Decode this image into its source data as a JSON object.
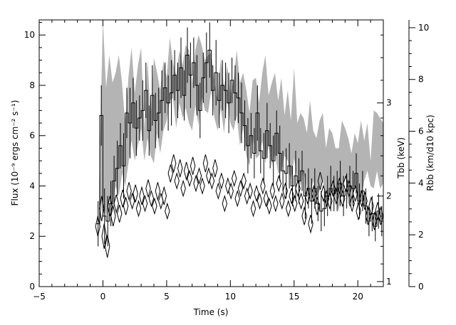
{
  "chart_data": {
    "type": "line",
    "title": "",
    "xlabel": "Time (s)",
    "ylabel": "Flux (10⁻⁹ ergs cm⁻² s⁻¹)",
    "xlim": [
      -5,
      22
    ],
    "ylim": [
      0,
      10.6
    ],
    "x_ticks": [
      -5,
      0,
      5,
      10,
      15,
      20
    ],
    "y_ticks": [
      0,
      2,
      4,
      6,
      8,
      10
    ],
    "right_axis_T": {
      "label": "Tbb (keV)",
      "ticks": [
        {
          "value": 1,
          "flux_pos": 0.2
        },
        {
          "value": 2,
          "flux_pos": 3.6
        },
        {
          "value": 3,
          "flux_pos": 7.3
        }
      ]
    },
    "right_axis_R": {
      "label": "Rbb (km/d10 kpc)",
      "ticks": [
        0,
        2,
        4,
        6,
        8,
        10
      ],
      "range": [
        0,
        10.3
      ]
    },
    "series": [
      {
        "style": "band",
        "color": "#b4b4b4",
        "x": [
          -0.3,
          0,
          0.25,
          0.5,
          0.75,
          1.0,
          1.25,
          1.5,
          1.75,
          2.0,
          2.25,
          2.5,
          2.75,
          3.0,
          3.25,
          3.5,
          3.75,
          4.0,
          4.25,
          4.5,
          4.75,
          5.0,
          5.25,
          5.5,
          5.75,
          6.0,
          6.25,
          6.5,
          6.75,
          7.0,
          7.25,
          7.5,
          7.75,
          8.0,
          8.25,
          8.5,
          8.75,
          9.0,
          9.25,
          9.5,
          9.75,
          10.0,
          10.25,
          10.5,
          10.75,
          11.0,
          11.25,
          11.5,
          11.75,
          12.0,
          12.25,
          12.5,
          12.75,
          13.0,
          13.25,
          13.5,
          13.75,
          14.0,
          14.25,
          14.5,
          14.75,
          15.0,
          15.25,
          15.5,
          15.75,
          16.0,
          16.25,
          16.5,
          16.75,
          17.0,
          17.25,
          17.5,
          17.75,
          18.0,
          18.25,
          18.5,
          18.75,
          19.0,
          19.25,
          19.5,
          19.75,
          20.0,
          20.25,
          20.5,
          20.75,
          21.0,
          21.25,
          21.5,
          21.75,
          22.0
        ],
        "lower": [
          2.3,
          3.5,
          2.7,
          3.4,
          3.1,
          4.0,
          3.6,
          4.5,
          4.0,
          4.9,
          5.8,
          5.0,
          5.6,
          6.3,
          5.0,
          5.9,
          5.2,
          4.9,
          6.1,
          5.3,
          6.2,
          6.6,
          7.4,
          7.5,
          6.3,
          7.3,
          6.7,
          7.1,
          6.5,
          6.2,
          7.2,
          6.4,
          7.6,
          7.0,
          6.9,
          7.8,
          6.7,
          6.2,
          7.1,
          6.1,
          7.4,
          6.5,
          6.2,
          6.8,
          5.6,
          6.3,
          5.2,
          4.8,
          6.0,
          5.1,
          5.2,
          5.8,
          4.9,
          5.6,
          4.8,
          5.3,
          4.5,
          4.6,
          5.2,
          5.0,
          4.2,
          5.1,
          4.3,
          4.0,
          4.6,
          3.8,
          3.7,
          4.2,
          3.6,
          3.8,
          4.3,
          3.2,
          3.6,
          3.9,
          3.5,
          3.0,
          3.9,
          4.5,
          3.3,
          3.1,
          4.2,
          3.0,
          3.5,
          4.2,
          4.6,
          4.0,
          3.9,
          4.6,
          3.9,
          4.1
        ],
        "upper": [
          4.1,
          10.6,
          7.9,
          9.2,
          8.1,
          8.5,
          9.2,
          8.1,
          6.4,
          8.3,
          9.5,
          7.7,
          8.8,
          9.5,
          6.3,
          9.0,
          6.7,
          9.1,
          8.5,
          7.8,
          9.0,
          8.3,
          9.9,
          8.9,
          8.4,
          9.4,
          8.8,
          9.6,
          9.4,
          8.1,
          9.4,
          10.0,
          9.6,
          9.0,
          9.2,
          9.3,
          8.1,
          7.4,
          9.1,
          7.9,
          8.8,
          7.6,
          8.2,
          9.4,
          8.1,
          8.5,
          7.8,
          6.9,
          8.2,
          8.3,
          7.3,
          8.5,
          9.2,
          7.6,
          8.1,
          8.5,
          7.4,
          8.3,
          6.8,
          7.8,
          6.6,
          8.7,
          6.5,
          6.9,
          6.7,
          6.1,
          7.4,
          6.2,
          5.9,
          6.6,
          6.9,
          5.5,
          6.3,
          6.1,
          5.5,
          5.5,
          6.6,
          6.3,
          5.9,
          5.3,
          6.1,
          5.7,
          6.6,
          5.8,
          6.5,
          5.0,
          7.0,
          6.9,
          6.7,
          6.5
        ]
      },
      {
        "style": "step",
        "color": "#000000",
        "x": [
          -0.5,
          -0.25,
          0,
          0.25,
          0.5,
          0.75,
          1.0,
          1.25,
          1.5,
          1.75,
          2.0,
          2.25,
          2.5,
          2.75,
          3.0,
          3.25,
          3.5,
          3.75,
          4.0,
          4.25,
          4.5,
          4.75,
          5.0,
          5.25,
          5.5,
          5.75,
          6.0,
          6.25,
          6.5,
          6.75,
          7.0,
          7.25,
          7.5,
          7.75,
          8.0,
          8.25,
          8.5,
          8.75,
          9.0,
          9.25,
          9.5,
          9.75,
          10.0,
          10.25,
          10.5,
          10.75,
          11.0,
          11.25,
          11.5,
          11.75,
          12.0,
          12.25,
          12.5,
          12.75,
          13.0,
          13.25,
          13.5,
          13.75,
          14.0,
          14.25,
          14.5,
          14.75,
          15.0,
          15.25,
          15.5,
          15.75,
          16.0,
          16.25,
          16.5,
          16.75,
          17.0,
          17.25,
          17.5,
          17.75,
          18.0,
          18.25,
          18.5,
          18.75,
          19.0,
          19.25,
          19.5,
          19.75,
          20.0,
          20.25,
          20.5,
          20.75,
          21.0,
          21.25,
          21.5,
          21.75
        ],
        "y": [
          2.5,
          6.8,
          2.8,
          2.6,
          3.3,
          4.2,
          4.7,
          5.6,
          4.8,
          6.9,
          6.5,
          7.3,
          6.3,
          6.7,
          7.0,
          7.8,
          6.2,
          7.6,
          6.6,
          6.9,
          7.4,
          7.9,
          7.3,
          7.7,
          8.4,
          7.8,
          8.7,
          7.6,
          9.2,
          8.4,
          8.9,
          8.0,
          7.0,
          8.3,
          8.9,
          9.4,
          7.8,
          8.5,
          7.4,
          8.0,
          7.8,
          7.3,
          8.2,
          7.7,
          7.5,
          6.9,
          6.4,
          5.6,
          6.0,
          5.3,
          6.9,
          5.4,
          5.1,
          6.2,
          5.6,
          5.0,
          6.1,
          5.3,
          4.6,
          4.5,
          4.8,
          4.0,
          4.4,
          4.2,
          4.6,
          3.6,
          3.9,
          3.4,
          3.9,
          3.3,
          3.0,
          3.1,
          3.6,
          3.9,
          3.7,
          3.8,
          4.1,
          3.6,
          3.8,
          4.0,
          3.9,
          4.5,
          3.4,
          3.8,
          3.2,
          2.6,
          2.9,
          2.4,
          3.0,
          2.6
        ],
        "yerr": [
          0.9,
          1.2,
          1.1,
          1.0,
          0.9,
          1.0,
          1.1,
          0.9,
          1.3,
          1.0,
          1.4,
          1.0,
          1.1,
          0.9,
          1.2,
          1.1,
          1.0,
          1.2,
          1.1,
          1.0,
          1.2,
          1.0,
          1.1,
          1.3,
          1.0,
          1.1,
          1.2,
          1.0,
          1.1,
          1.3,
          1.0,
          1.2,
          1.1,
          1.0,
          1.2,
          1.1,
          1.0,
          1.3,
          1.1,
          1.0,
          1.1,
          1.2,
          0.9,
          1.1,
          1.0,
          1.2,
          1.0,
          1.1,
          0.9,
          1.0,
          1.1,
          0.9,
          1.0,
          1.1,
          0.9,
          1.0,
          0.9,
          1.1,
          0.8,
          1.0,
          0.9,
          0.8,
          1.0,
          0.9,
          0.8,
          0.9,
          0.8,
          0.9,
          0.8,
          0.7,
          0.8,
          0.7,
          0.8,
          0.9,
          0.7,
          0.8,
          0.9,
          0.8,
          0.7,
          0.8,
          0.7,
          0.8,
          0.7,
          0.8,
          0.7,
          0.6,
          0.7,
          0.6,
          0.7,
          0.6
        ]
      },
      {
        "style": "diamond-error",
        "color": "#000000",
        "x": [
          -0.4,
          -0.1,
          0.1,
          0.35,
          0.55,
          0.8,
          1.05,
          1.3,
          1.55,
          1.8,
          2.05,
          2.3,
          2.55,
          2.8,
          3.05,
          3.3,
          3.55,
          3.8,
          4.05,
          4.3,
          4.55,
          4.8,
          5.05,
          5.3,
          5.55,
          5.8,
          6.05,
          6.3,
          6.55,
          6.8,
          7.05,
          7.3,
          7.55,
          7.8,
          8.05,
          8.3,
          8.55,
          8.8,
          9.05,
          9.3,
          9.55,
          9.8,
          10.05,
          10.3,
          10.55,
          10.8,
          11.05,
          11.3,
          11.55,
          11.8,
          12.05,
          12.3,
          12.55,
          12.8,
          13.05,
          13.3,
          13.55,
          13.8,
          14.05,
          14.3,
          14.55,
          14.8,
          15.05,
          15.3,
          15.55,
          15.8,
          16.05,
          16.3,
          16.55,
          16.8,
          17.05,
          17.3,
          17.55,
          17.8,
          18.05,
          18.3,
          18.55,
          18.8,
          19.05,
          19.3,
          19.55,
          19.8,
          20.05,
          20.3,
          20.55,
          20.8,
          21.05,
          21.3,
          21.55,
          21.8
        ],
        "y": [
          2.4,
          3.1,
          2.0,
          1.6,
          3.2,
          2.8,
          3.3,
          2.9,
          3.5,
          3.2,
          3.8,
          3.4,
          3.7,
          3.1,
          3.6,
          3.3,
          3.9,
          3.5,
          3.2,
          3.8,
          3.4,
          3.6,
          3.0,
          4.5,
          4.9,
          4.2,
          4.7,
          3.9,
          4.6,
          4.3,
          4.8,
          4.1,
          4.4,
          4.0,
          4.9,
          4.4,
          4.2,
          4.7,
          3.8,
          4.2,
          3.3,
          4.0,
          3.8,
          4.3,
          3.5,
          3.9,
          4.2,
          3.6,
          3.8,
          3.1,
          3.7,
          3.4,
          4.0,
          3.5,
          3.2,
          3.8,
          3.3,
          4.1,
          3.4,
          3.8,
          3.1,
          3.6,
          3.3,
          3.9,
          3.4,
          2.8,
          3.6,
          2.5,
          3.7,
          3.2,
          4.2,
          3.7,
          3.5,
          3.4,
          3.9,
          3.6,
          4.0,
          3.5,
          4.1,
          3.9,
          3.3,
          3.7,
          3.0,
          3.5,
          3.4,
          2.8,
          3.2,
          2.6,
          3.0,
          2.8
        ],
        "yerr": [
          0.4,
          0.5,
          0.5,
          0.45,
          0.4,
          0.4,
          0.35,
          0.35,
          0.35,
          0.35,
          0.35,
          0.3,
          0.35,
          0.3,
          0.35,
          0.3,
          0.35,
          0.3,
          0.3,
          0.35,
          0.3,
          0.35,
          0.3,
          0.35,
          0.35,
          0.3,
          0.35,
          0.3,
          0.35,
          0.3,
          0.35,
          0.3,
          0.3,
          0.3,
          0.35,
          0.3,
          0.3,
          0.35,
          0.3,
          0.3,
          0.3,
          0.3,
          0.3,
          0.3,
          0.3,
          0.3,
          0.3,
          0.3,
          0.3,
          0.3,
          0.3,
          0.3,
          0.3,
          0.3,
          0.3,
          0.3,
          0.3,
          0.3,
          0.3,
          0.3,
          0.3,
          0.3,
          0.3,
          0.3,
          0.3,
          0.35,
          0.3,
          0.35,
          0.3,
          0.35,
          0.35,
          0.3,
          0.3,
          0.3,
          0.3,
          0.3,
          0.3,
          0.3,
          0.3,
          0.3,
          0.3,
          0.3,
          0.35,
          0.3,
          0.35,
          0.35,
          0.35,
          0.35,
          0.35,
          0.35
        ]
      }
    ]
  }
}
